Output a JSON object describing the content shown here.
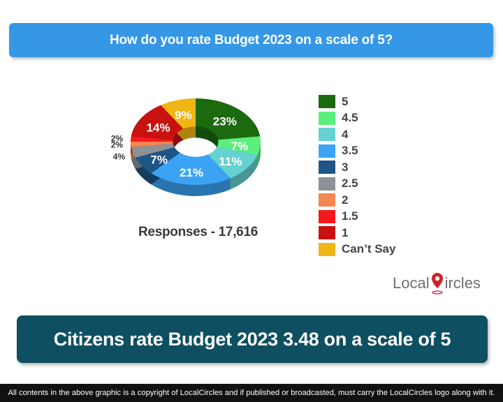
{
  "header": {
    "question": "How do you rate Budget 2023 on a scale of 5?"
  },
  "chart_data": {
    "type": "pie",
    "title": "How do you rate Budget 2023 on a scale of 5?",
    "categories": [
      "5",
      "4.5",
      "4",
      "3.5",
      "3",
      "2.5",
      "2",
      "1.5",
      "1",
      "Can’t Say"
    ],
    "values": [
      23,
      7,
      11,
      21,
      7,
      4,
      2,
      2,
      14,
      9
    ],
    "labels": [
      "23%",
      "7%",
      "11%",
      "21%",
      "7%",
      "4%",
      "2%",
      "2%",
      "14%",
      "9%"
    ],
    "colors": [
      "#1b6a0e",
      "#5cee7c",
      "#64d2d0",
      "#3ba3f3",
      "#1d5587",
      "#8e9296",
      "#f4874f",
      "#f5191c",
      "#c8120f",
      "#f1b615"
    ],
    "legend_position": "right",
    "donut": true,
    "footnote": "Responses - 17,616"
  },
  "responses_label": "Responses - 17,616",
  "logo": {
    "text_before": "Local",
    "text_after": "ircles",
    "icon": "map-pin-icon"
  },
  "conclusion": {
    "text": "Citizens rate Budget 2023 3.48 on a scale of 5"
  },
  "footer": {
    "text": "All contents in the above graphic is a copyright of LocalCircles and if published or broadcasted, must carry the LocalCircles logo along with it."
  }
}
